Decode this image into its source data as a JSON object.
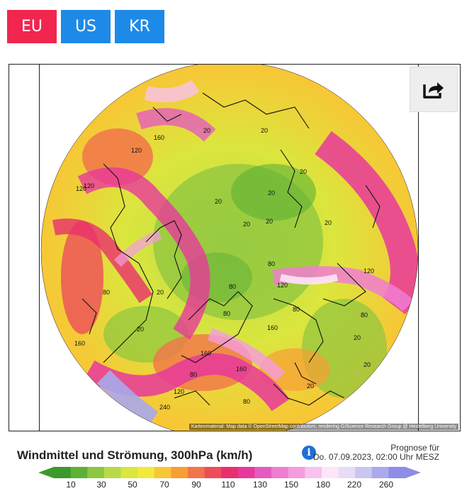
{
  "tabs": [
    {
      "label": "EU"
    },
    {
      "label": "US"
    },
    {
      "label": "KR"
    }
  ],
  "share_icon": "share-icon",
  "map": {
    "attribution": "Kartenmaterial: Map data © OpenStreetMap contributors, rendering GIScience Research Group @ Heidelberg University",
    "value_labels": [
      "160",
      "120",
      "120",
      "20",
      "20",
      "20",
      "20",
      "20",
      "20",
      "20",
      "20",
      "20",
      "80",
      "80",
      "80",
      "80",
      "80",
      "80",
      "80",
      "80",
      "120",
      "120",
      "160",
      "160",
      "160",
      "160",
      "120",
      "120",
      "20",
      "20",
      "20",
      "20",
      "240"
    ]
  },
  "legend": {
    "title": "Windmittel und Strömung, 300hPa (km/h)",
    "info_icon": "info-icon",
    "prognose_line1": "Prognose für",
    "prognose_line2": "Do. 07.09.2023, 02:00 Uhr MESZ",
    "scale_labels": [
      "10",
      "30",
      "50",
      "70",
      "90",
      "110",
      "130",
      "150",
      "180",
      "220",
      "260"
    ],
    "colors": [
      "#3c9a2c",
      "#5eb036",
      "#8dc63f",
      "#b8d94a",
      "#dbe63e",
      "#f2ea3a",
      "#f7c736",
      "#f79e34",
      "#f2744a",
      "#ee4e5a",
      "#e8306d",
      "#e8389b",
      "#e45cbf",
      "#f07dd2",
      "#f59be0",
      "#f9c2ee",
      "#fde6f7",
      "#e6dcf6",
      "#c9c6f2",
      "#a9a9ec",
      "#8d8de6"
    ]
  }
}
